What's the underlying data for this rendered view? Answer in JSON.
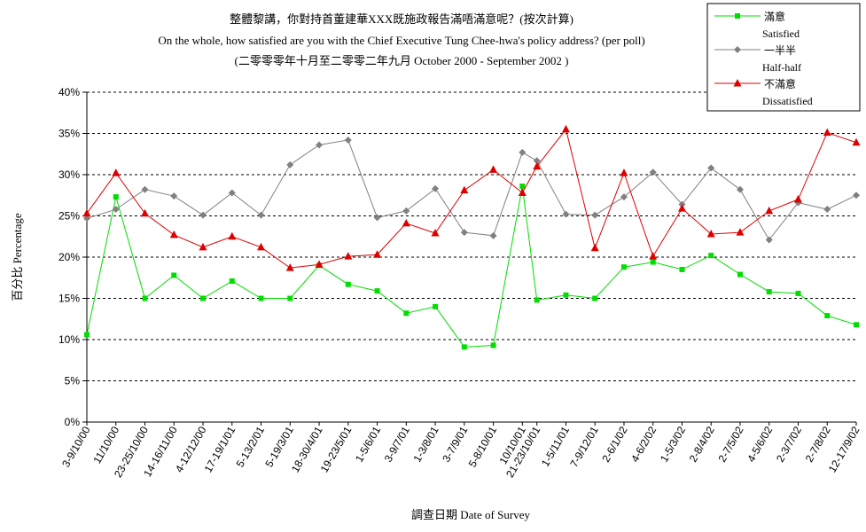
{
  "chart_data": {
    "type": "line",
    "title": "整體黎講，你對持首董建華XXX既施政報告滿唔滿意呢？(按次計算)",
    "subtitle": "On the whole, how satisfied are you with the Chief Executive Tung Chee-hwa's policy address? (per poll)",
    "subtitle2": "(二零零零年十月至二零零二年九月 October 2000 - September 2002 )",
    "xlabel": "調查日期 Date of Survey",
    "ylabel": "百分比 Percentage",
    "ylim": [
      0,
      40
    ],
    "yticks": [
      "0%",
      "5%",
      "10%",
      "15%",
      "20%",
      "25%",
      "30%",
      "35%",
      "40%"
    ],
    "grid": "horizontal-dashed",
    "legend_position": "top-right",
    "categories": [
      "3-9/10/00",
      "11/10/00",
      "23-25/10/00",
      "14-16/11/00",
      "4-12/12/00",
      "17-19/1/01",
      "5-13/2/01",
      "5-19/3/01",
      "18-30/4/01",
      "19-23/5/01",
      "1-5/6/01",
      "3-9/7/01",
      "1-3/8/01",
      "3-7/9/01",
      "5-8/10/01",
      "10/10/01",
      "21-23/10/01",
      "1-5/11/01",
      "7-9/12/01",
      "2-6/1/02",
      "4-6/2/02",
      "1-5/3/02",
      "2-8/4/02",
      "2-7/5/02",
      "4-5/6/02",
      "2-3/7/02",
      "2-7/8/02",
      "12-17/9/02"
    ],
    "x_positions": [
      0,
      1,
      2,
      3,
      4,
      5,
      6,
      7,
      8,
      9,
      10,
      11,
      12,
      13,
      14,
      15,
      15.5,
      16.5,
      17.5,
      18.5,
      19.5,
      20.5,
      21.5,
      22.5,
      23.5,
      24.5,
      25.5,
      26.5
    ],
    "series": [
      {
        "name": "滿意",
        "name_en": "Satisfied",
        "color": "#00dd00",
        "marker": "square",
        "values": [
          10.6,
          27.3,
          15.0,
          17.8,
          15.0,
          17.1,
          15.0,
          15.0,
          19.0,
          16.7,
          15.9,
          13.2,
          14.0,
          9.1,
          9.3,
          28.6,
          14.8,
          15.4,
          15.0,
          18.8,
          19.4,
          18.5,
          20.2,
          17.9,
          15.8,
          15.6,
          12.9,
          11.8
        ]
      },
      {
        "name": "一半半",
        "name_en": "Half-half",
        "color": "#808080",
        "marker": "diamond",
        "values": [
          24.7,
          25.8,
          28.2,
          27.4,
          25.1,
          27.8,
          25.1,
          31.2,
          33.6,
          34.2,
          24.8,
          25.6,
          28.3,
          23.0,
          22.6,
          32.7,
          31.7,
          25.2,
          25.1,
          27.3,
          30.3,
          26.4,
          30.8,
          28.2,
          22.1,
          26.6,
          25.8,
          27.5
        ]
      },
      {
        "name": "不滿意",
        "name_en": "Dissatisfied",
        "color": "#dd0000",
        "marker": "triangle",
        "values": [
          25.3,
          30.2,
          25.3,
          22.7,
          21.2,
          22.5,
          21.2,
          18.7,
          19.1,
          20.1,
          20.3,
          24.1,
          22.9,
          28.1,
          30.6,
          27.8,
          31.0,
          35.5,
          21.1,
          30.2,
          20.1,
          25.9,
          22.8,
          23.0,
          25.6,
          27.0,
          35.1,
          33.9
        ]
      }
    ]
  }
}
